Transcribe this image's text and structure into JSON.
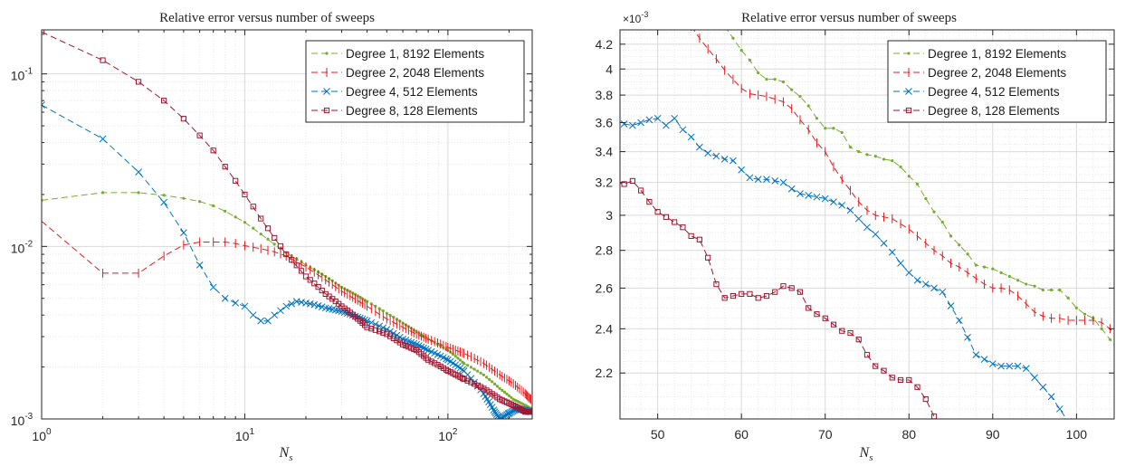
{
  "chart_data": [
    {
      "type": "line",
      "title": "Relative error versus number of sweeps",
      "xlabel": "N_s",
      "ylabel": "",
      "xscale": "log",
      "yscale": "log",
      "xlim": [
        1,
        260
      ],
      "ylim": [
        0.001,
        0.18
      ],
      "grid": true,
      "legend_position": "top-right",
      "xticks": [
        {
          "value": 1,
          "base": "10",
          "exp": "0"
        },
        {
          "value": 10,
          "base": "10",
          "exp": "1"
        },
        {
          "value": 100,
          "base": "10",
          "exp": "2"
        }
      ],
      "yticks": [
        {
          "value": 0.1,
          "base": "10",
          "exp": "-1"
        },
        {
          "value": 0.01,
          "base": "10",
          "exp": "-2"
        },
        {
          "value": 0.001,
          "base": "10",
          "exp": "-3"
        }
      ],
      "series": [
        {
          "name": "Degree 1, 8192 Elements",
          "color": "#77ac30",
          "marker": "dot",
          "x": [
            1,
            2,
            3,
            4,
            5,
            6,
            7,
            8,
            9,
            10,
            12,
            14,
            16,
            20,
            25,
            30,
            40,
            50,
            60,
            70,
            80,
            100,
            120,
            150,
            180,
            210,
            240,
            256
          ],
          "y": [
            0.0185,
            0.0205,
            0.0205,
            0.0198,
            0.019,
            0.0182,
            0.0172,
            0.016,
            0.0148,
            0.0138,
            0.0118,
            0.0103,
            0.0092,
            0.0078,
            0.0067,
            0.0058,
            0.0048,
            0.0041,
            0.0036,
            0.0032,
            0.0029,
            0.0025,
            0.0021,
            0.0018,
            0.0015,
            0.0013,
            0.0012,
            0.00115
          ]
        },
        {
          "name": "Degree 2, 2048 Elements",
          "color": "#e41a1c",
          "marker": "tick",
          "x": [
            1,
            2,
            3,
            4,
            5,
            6,
            7,
            8,
            9,
            10,
            12,
            14,
            16,
            20,
            25,
            30,
            40,
            50,
            60,
            70,
            80,
            100,
            120,
            150,
            180,
            210,
            240,
            256
          ],
          "y": [
            0.014,
            0.007,
            0.007,
            0.0088,
            0.0102,
            0.0106,
            0.0106,
            0.0106,
            0.0104,
            0.0101,
            0.0097,
            0.0093,
            0.0088,
            0.0076,
            0.0064,
            0.0055,
            0.0045,
            0.0038,
            0.0034,
            0.0031,
            0.0029,
            0.0026,
            0.0024,
            0.0021,
            0.0018,
            0.0016,
            0.0014,
            0.0013
          ]
        },
        {
          "name": "Degree 4, 512 Elements",
          "color": "#0072bd",
          "marker": "x",
          "x": [
            1,
            2,
            3,
            4,
            5,
            6,
            7,
            8,
            9,
            10,
            11,
            12,
            13,
            14,
            16,
            18,
            20,
            22,
            25,
            30,
            40,
            50,
            60,
            70,
            80,
            100,
            120,
            150,
            170,
            180,
            200,
            220,
            240,
            256
          ],
          "y": [
            0.066,
            0.042,
            0.027,
            0.018,
            0.012,
            0.0078,
            0.0058,
            0.005,
            0.0047,
            0.0045,
            0.004,
            0.0037,
            0.0037,
            0.004,
            0.0045,
            0.0048,
            0.0047,
            0.0046,
            0.0044,
            0.0042,
            0.0037,
            0.0033,
            0.0029,
            0.0027,
            0.0025,
            0.0022,
            0.0019,
            0.0014,
            0.0011,
            0.001,
            0.00108,
            0.00115,
            0.00112,
            0.0011
          ]
        },
        {
          "name": "Degree 8, 128 Elements",
          "color": "#a2142f",
          "marker": "square",
          "x": [
            1,
            2,
            3,
            4,
            5,
            6,
            7,
            8,
            9,
            10,
            12,
            14,
            16,
            20,
            25,
            30,
            40,
            50,
            60,
            70,
            80,
            100,
            120,
            150,
            180,
            210,
            240,
            256
          ],
          "y": [
            0.175,
            0.12,
            0.09,
            0.07,
            0.055,
            0.044,
            0.036,
            0.029,
            0.024,
            0.02,
            0.0145,
            0.0112,
            0.009,
            0.0067,
            0.0053,
            0.0045,
            0.0034,
            0.0031,
            0.0027,
            0.0025,
            0.0022,
            0.0019,
            0.0017,
            0.0015,
            0.0013,
            0.0012,
            0.0011,
            0.0011
          ]
        }
      ]
    },
    {
      "type": "line",
      "title": "Relative error versus number of sweeps",
      "xlabel": "N_s",
      "ylabel": "",
      "xscale": "linear",
      "yscale": "log",
      "xlim": [
        45.5,
        104.5
      ],
      "ylim": [
        0.00201,
        0.00432
      ],
      "y_multiplier_label": {
        "base": "×10",
        "exp": "-3"
      },
      "grid": true,
      "legend_position": "top-right",
      "xticks": [
        50,
        60,
        70,
        80,
        90,
        100
      ],
      "yticks": [
        {
          "value": 0.0022,
          "label": "2.2"
        },
        {
          "value": 0.0024,
          "label": "2.4"
        },
        {
          "value": 0.0026,
          "label": "2.6"
        },
        {
          "value": 0.0028,
          "label": "2.8"
        },
        {
          "value": 0.003,
          "label": "3"
        },
        {
          "value": 0.0032,
          "label": "3.2"
        },
        {
          "value": 0.0034,
          "label": "3.4"
        },
        {
          "value": 0.0036,
          "label": "3.6"
        },
        {
          "value": 0.0038,
          "label": "3.8"
        },
        {
          "value": 0.004,
          "label": "4"
        },
        {
          "value": 0.0042,
          "label": "4.2"
        }
      ],
      "series": [
        {
          "name": "Degree 1, 8192 Elements",
          "color": "#77ac30",
          "marker": "dot",
          "x": [
            58,
            59,
            60,
            61,
            62,
            63,
            64,
            65,
            66,
            67,
            68,
            69,
            70,
            71,
            72,
            73,
            74,
            75,
            76,
            77,
            78,
            79,
            80,
            81,
            82,
            83,
            84,
            85,
            86,
            87,
            88,
            89,
            90,
            91,
            92,
            93,
            94,
            95,
            96,
            97,
            98,
            99,
            100,
            101,
            102,
            103,
            104,
            105
          ],
          "y": [
            4.35,
            4.25,
            4.15,
            4.07,
            3.97,
            3.92,
            3.92,
            3.9,
            3.84,
            3.79,
            3.72,
            3.63,
            3.56,
            3.56,
            3.53,
            3.43,
            3.4,
            3.38,
            3.37,
            3.35,
            3.34,
            3.3,
            3.24,
            3.19,
            3.1,
            3.02,
            2.96,
            2.88,
            2.83,
            2.78,
            2.72,
            2.71,
            2.7,
            2.68,
            2.66,
            2.64,
            2.62,
            2.61,
            2.59,
            2.59,
            2.59,
            2.55,
            2.5,
            2.47,
            2.45,
            2.4,
            2.35,
            2.3
          ]
        },
        {
          "name": "Degree 2, 2048 Elements",
          "color": "#e41a1c",
          "marker": "tick",
          "x": [
            54,
            55,
            56,
            57,
            58,
            59,
            60,
            61,
            62,
            63,
            64,
            65,
            66,
            67,
            68,
            69,
            70,
            71,
            72,
            73,
            74,
            75,
            76,
            77,
            78,
            79,
            80,
            81,
            82,
            83,
            84,
            85,
            86,
            87,
            88,
            89,
            90,
            91,
            92,
            93,
            94,
            95,
            96,
            97,
            98,
            99,
            100,
            101,
            102,
            103,
            104,
            105
          ],
          "y": [
            4.35,
            4.25,
            4.16,
            4.08,
            3.99,
            3.92,
            3.85,
            3.81,
            3.8,
            3.79,
            3.77,
            3.75,
            3.7,
            3.62,
            3.55,
            3.46,
            3.4,
            3.3,
            3.22,
            3.15,
            3.08,
            3.03,
            3.0,
            2.99,
            2.98,
            2.95,
            2.92,
            2.88,
            2.84,
            2.8,
            2.77,
            2.73,
            2.71,
            2.68,
            2.65,
            2.62,
            2.6,
            2.6,
            2.59,
            2.56,
            2.52,
            2.48,
            2.46,
            2.45,
            2.45,
            2.44,
            2.44,
            2.44,
            2.44,
            2.43,
            2.4,
            2.35
          ]
        },
        {
          "name": "Degree 4, 512 Elements",
          "color": "#0072bd",
          "marker": "x",
          "x": [
            46,
            47,
            48,
            49,
            50,
            51,
            52,
            53,
            54,
            55,
            56,
            57,
            58,
            59,
            60,
            61,
            62,
            63,
            64,
            65,
            66,
            67,
            68,
            69,
            70,
            71,
            72,
            73,
            74,
            75,
            76,
            77,
            78,
            79,
            80,
            81,
            82,
            83,
            84,
            85,
            86,
            87,
            88,
            89,
            90,
            91,
            92,
            93,
            94,
            95,
            96,
            97,
            98,
            99
          ],
          "y": [
            3.59,
            3.58,
            3.6,
            3.62,
            3.63,
            3.58,
            3.63,
            3.55,
            3.5,
            3.43,
            3.39,
            3.37,
            3.35,
            3.34,
            3.28,
            3.23,
            3.22,
            3.22,
            3.21,
            3.2,
            3.16,
            3.13,
            3.12,
            3.11,
            3.1,
            3.08,
            3.06,
            3.03,
            2.98,
            2.93,
            2.89,
            2.84,
            2.79,
            2.73,
            2.68,
            2.64,
            2.62,
            2.6,
            2.58,
            2.51,
            2.44,
            2.36,
            2.28,
            2.26,
            2.24,
            2.23,
            2.23,
            2.23,
            2.22,
            2.18,
            2.14,
            2.1,
            2.05,
            2.0
          ]
        },
        {
          "name": "Degree 8, 128 Elements",
          "color": "#a2142f",
          "marker": "square",
          "x": [
            45,
            46,
            47,
            48,
            49,
            50,
            51,
            52,
            53,
            54,
            55,
            56,
            57,
            58,
            59,
            60,
            61,
            62,
            63,
            64,
            65,
            66,
            67,
            68,
            69,
            70,
            71,
            72,
            73,
            74,
            75,
            76,
            77,
            78,
            79,
            80,
            81,
            82,
            83,
            84
          ],
          "y": [
            3.2,
            3.19,
            3.21,
            3.15,
            3.08,
            3.02,
            2.99,
            2.96,
            2.93,
            2.88,
            2.86,
            2.76,
            2.62,
            2.55,
            2.56,
            2.57,
            2.57,
            2.55,
            2.56,
            2.58,
            2.61,
            2.6,
            2.58,
            2.5,
            2.47,
            2.45,
            2.42,
            2.39,
            2.38,
            2.35,
            2.28,
            2.23,
            2.21,
            2.18,
            2.17,
            2.17,
            2.14,
            2.09,
            2.02,
            1.98
          ]
        }
      ]
    }
  ]
}
